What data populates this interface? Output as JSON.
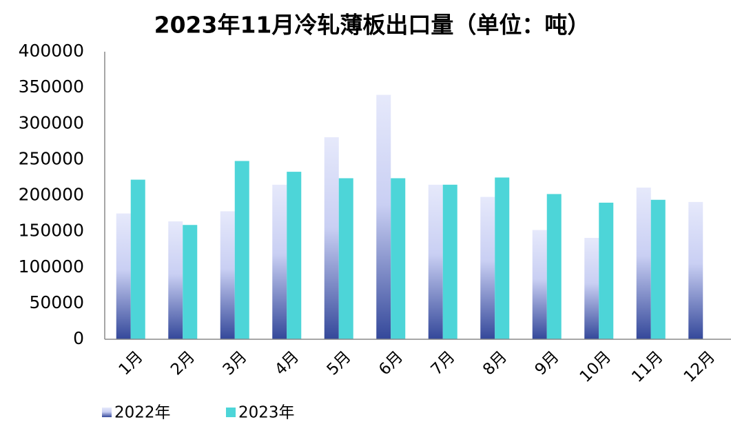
{
  "chart_data": {
    "type": "bar",
    "title": "2023年11月冷轧薄板出口量（单位：吨）",
    "categories": [
      "1月",
      "2月",
      "3月",
      "4月",
      "5月",
      "6月",
      "7月",
      "8月",
      "9月",
      "10月",
      "11月",
      "12月"
    ],
    "series": [
      {
        "name": "2022年",
        "color": "#34489a",
        "values": [
          175000,
          164000,
          178000,
          215000,
          281000,
          340000,
          215000,
          198000,
          152000,
          141000,
          211000,
          191000
        ]
      },
      {
        "name": "2023年",
        "color": "#4dd5d8",
        "values": [
          222000,
          159000,
          248000,
          233000,
          224000,
          224000,
          215000,
          225000,
          202000,
          190000,
          194000,
          null
        ]
      }
    ],
    "ylim": [
      0,
      400000
    ],
    "yticks": [
      0,
      50000,
      100000,
      150000,
      200000,
      250000,
      300000,
      350000,
      400000
    ],
    "grid": false,
    "legend": "bottom-left"
  }
}
